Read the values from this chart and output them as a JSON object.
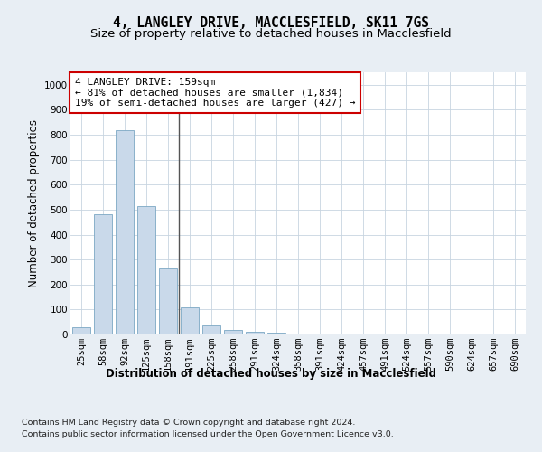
{
  "title_line1": "4, LANGLEY DRIVE, MACCLESFIELD, SK11 7GS",
  "title_line2": "Size of property relative to detached houses in Macclesfield",
  "xlabel": "Distribution of detached houses by size in Macclesfield",
  "ylabel": "Number of detached properties",
  "categories": [
    "25sqm",
    "58sqm",
    "92sqm",
    "125sqm",
    "158sqm",
    "191sqm",
    "225sqm",
    "258sqm",
    "291sqm",
    "324sqm",
    "358sqm",
    "391sqm",
    "424sqm",
    "457sqm",
    "491sqm",
    "524sqm",
    "557sqm",
    "590sqm",
    "624sqm",
    "657sqm",
    "690sqm"
  ],
  "values": [
    28,
    480,
    820,
    515,
    265,
    110,
    35,
    18,
    10,
    7,
    0,
    0,
    0,
    0,
    0,
    0,
    0,
    0,
    0,
    0,
    0
  ],
  "bar_color": "#c9d9ea",
  "bar_edge_color": "#7ba7c4",
  "highlight_index": 4,
  "highlight_line_color": "#555555",
  "annotation_line1": "4 LANGLEY DRIVE: 159sqm",
  "annotation_line2": "← 81% of detached houses are smaller (1,834)",
  "annotation_line3": "19% of semi-detached houses are larger (427) →",
  "annotation_box_color": "white",
  "annotation_box_edge_color": "#cc0000",
  "ylim": [
    0,
    1050
  ],
  "yticks": [
    0,
    100,
    200,
    300,
    400,
    500,
    600,
    700,
    800,
    900,
    1000
  ],
  "footer_line1": "Contains HM Land Registry data © Crown copyright and database right 2024.",
  "footer_line2": "Contains public sector information licensed under the Open Government Licence v3.0.",
  "background_color": "#e8eef4",
  "plot_bg_color": "#ffffff",
  "grid_color": "#c8d4e0",
  "title_fontsize": 10.5,
  "subtitle_fontsize": 9.5,
  "axis_label_fontsize": 8.5,
  "tick_fontsize": 7.5,
  "annotation_fontsize": 8,
  "footer_fontsize": 6.8
}
